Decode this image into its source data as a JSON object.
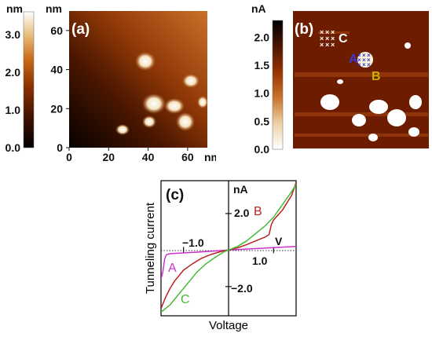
{
  "chart_data": [
    {
      "panel": "(a)",
      "type": "heatmap",
      "colorbar": {
        "unit": "nm",
        "ticks": [
          "0.0",
          "1.0",
          "2.0",
          "3.0"
        ],
        "range": [
          0,
          3.6
        ]
      },
      "x_axis": {
        "unit": "nm",
        "ticks": [
          "0",
          "20",
          "40",
          "60"
        ],
        "range": [
          0,
          70
        ]
      },
      "y_axis": {
        "unit": "nm",
        "ticks": [
          "0",
          "20",
          "40",
          "60"
        ],
        "range": [
          0,
          70
        ]
      }
    },
    {
      "panel": "(b)",
      "type": "heatmap",
      "colorbar": {
        "unit": "nA",
        "ticks": [
          "0.0",
          "0.5",
          "1.0",
          "1.5",
          "2.0"
        ],
        "range": [
          0,
          2.3
        ]
      },
      "annotations": [
        {
          "label": "A",
          "color": "#3a3ad8"
        },
        {
          "label": "B",
          "color": "#c8b000"
        },
        {
          "label": "C",
          "color": "#ffffff"
        }
      ]
    },
    {
      "panel": "(c)",
      "type": "line",
      "xlabel": "Voltage",
      "ylabel": "Tunneling current",
      "x_unit": "V",
      "y_unit": "nA",
      "x_ticks": [
        "−1.0",
        "1.0"
      ],
      "y_ticks": [
        "2.0",
        "−2.0"
      ],
      "xlim": [
        -1.5,
        1.5
      ],
      "ylim": [
        -3.6,
        3.8
      ],
      "series": [
        {
          "name": "A",
          "color": "#cc33cc",
          "x": [
            -1.5,
            -1.46,
            -1.42,
            -1.38,
            -1.3,
            -1.1,
            -0.9,
            -0.6,
            -0.3,
            0,
            0.3,
            0.6,
            0.9,
            1.2,
            1.5
          ],
          "y": [
            -1.6,
            -1.2,
            -0.5,
            -0.25,
            -0.2,
            -0.17,
            -0.14,
            -0.1,
            -0.05,
            0,
            0.04,
            0.08,
            0.12,
            0.16,
            0.2
          ]
        },
        {
          "name": "B",
          "color": "#bb2222",
          "x": [
            -1.5,
            -1.4,
            -1.3,
            -1.2,
            -1.0,
            -0.8,
            -0.6,
            -0.4,
            -0.2,
            0,
            0.2,
            0.4,
            0.6,
            0.8,
            0.9,
            0.95,
            1.0,
            1.2,
            1.4,
            1.5
          ],
          "y": [
            -3.2,
            -2.6,
            -2.1,
            -1.7,
            -1.1,
            -0.75,
            -0.45,
            -0.25,
            -0.1,
            0,
            0.12,
            0.3,
            0.5,
            0.7,
            0.85,
            1.4,
            1.65,
            2.2,
            3.0,
            3.7
          ]
        },
        {
          "name": "C",
          "color": "#44bb33",
          "x": [
            -1.5,
            -1.3,
            -1.1,
            -0.9,
            -0.7,
            -0.5,
            -0.3,
            -0.1,
            0,
            0.2,
            0.4,
            0.6,
            0.8,
            1.0,
            1.2,
            1.4,
            1.5
          ],
          "y": [
            -3.4,
            -3.0,
            -2.4,
            -1.8,
            -1.2,
            -0.75,
            -0.4,
            -0.1,
            0,
            0.2,
            0.5,
            0.9,
            1.3,
            1.8,
            2.5,
            3.2,
            3.6
          ]
        }
      ]
    }
  ]
}
